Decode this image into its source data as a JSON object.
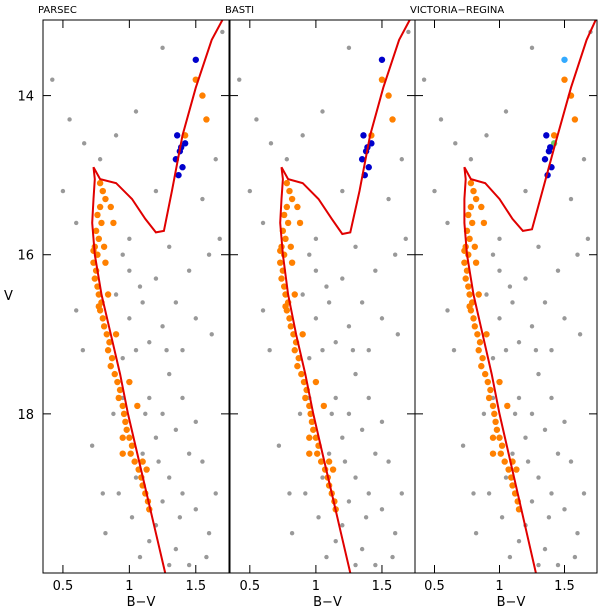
{
  "chart_data": {
    "type": "scatter",
    "ylabel": "V",
    "xlabel": "B−V",
    "xlim": [
      0.35,
      1.75
    ],
    "ylim": [
      20.0,
      13.05
    ],
    "x_ticks": [
      "0.5",
      "1",
      "1.5"
    ],
    "x_tick_values": [
      0.5,
      1.0,
      1.5
    ],
    "y_ticks": [
      "14",
      "16",
      "18"
    ],
    "y_tick_values": [
      14,
      16,
      18
    ],
    "colors": {
      "field": "#999999",
      "member": "#ff8000",
      "giant_blue": "#0000cc",
      "giant_lightblue": "#33aaff",
      "giant_green": "#66cc66",
      "isochrone": "#e00000"
    },
    "panels": [
      {
        "title": "PARSEC",
        "model": "parsec"
      },
      {
        "title": "BASTI",
        "model": "basti"
      },
      {
        "title": "VICTORIA−REGINA",
        "model": "victoria"
      }
    ],
    "isochrones": {
      "parsec": [
        [
          1.27,
          20.0
        ],
        [
          1.2,
          19.5
        ],
        [
          1.13,
          19.0
        ],
        [
          1.06,
          18.5
        ],
        [
          0.99,
          18.0
        ],
        [
          0.93,
          17.5
        ],
        [
          0.86,
          17.0
        ],
        [
          0.79,
          16.5
        ],
        [
          0.74,
          16.0
        ],
        [
          0.72,
          15.6
        ],
        [
          0.73,
          15.3
        ],
        [
          0.74,
          15.05
        ],
        [
          0.73,
          14.9
        ],
        [
          0.78,
          15.05
        ],
        [
          0.9,
          15.1
        ],
        [
          1.02,
          15.3
        ],
        [
          1.12,
          15.55
        ],
        [
          1.2,
          15.72
        ],
        [
          1.26,
          15.7
        ],
        [
          1.32,
          15.2
        ],
        [
          1.4,
          14.5
        ],
        [
          1.5,
          13.9
        ],
        [
          1.62,
          13.3
        ],
        [
          1.7,
          13.05
        ]
      ],
      "basti": [
        [
          1.26,
          20.0
        ],
        [
          1.19,
          19.5
        ],
        [
          1.12,
          19.0
        ],
        [
          1.05,
          18.5
        ],
        [
          0.98,
          18.0
        ],
        [
          0.92,
          17.5
        ],
        [
          0.85,
          17.0
        ],
        [
          0.79,
          16.5
        ],
        [
          0.75,
          16.0
        ],
        [
          0.73,
          15.6
        ],
        [
          0.74,
          15.3
        ],
        [
          0.75,
          15.05
        ],
        [
          0.74,
          14.9
        ],
        [
          0.79,
          15.05
        ],
        [
          0.9,
          15.1
        ],
        [
          1.02,
          15.3
        ],
        [
          1.12,
          15.55
        ],
        [
          1.2,
          15.74
        ],
        [
          1.26,
          15.72
        ],
        [
          1.33,
          15.2
        ],
        [
          1.41,
          14.5
        ],
        [
          1.51,
          13.9
        ],
        [
          1.63,
          13.3
        ],
        [
          1.71,
          13.05
        ]
      ],
      "victoria": [
        [
          1.28,
          20.0
        ],
        [
          1.21,
          19.5
        ],
        [
          1.14,
          19.0
        ],
        [
          1.07,
          18.5
        ],
        [
          1.0,
          18.0
        ],
        [
          0.94,
          17.5
        ],
        [
          0.87,
          17.0
        ],
        [
          0.8,
          16.5
        ],
        [
          0.75,
          16.0
        ],
        [
          0.73,
          15.6
        ],
        [
          0.73,
          15.3
        ],
        [
          0.74,
          15.05
        ],
        [
          0.73,
          14.9
        ],
        [
          0.78,
          15.05
        ],
        [
          0.89,
          15.1
        ],
        [
          1.0,
          15.3
        ],
        [
          1.1,
          15.55
        ],
        [
          1.18,
          15.7
        ],
        [
          1.25,
          15.68
        ],
        [
          1.33,
          15.2
        ],
        [
          1.43,
          14.6
        ],
        [
          1.55,
          13.9
        ],
        [
          1.67,
          13.3
        ],
        [
          1.74,
          13.05
        ]
      ]
    },
    "members": [
      [
        0.78,
        15.1
      ],
      [
        0.8,
        15.2
      ],
      [
        0.82,
        15.3
      ],
      [
        0.78,
        15.4
      ],
      [
        0.76,
        15.5
      ],
      [
        0.79,
        15.6
      ],
      [
        0.75,
        15.7
      ],
      [
        0.77,
        15.8
      ],
      [
        0.74,
        15.9
      ],
      [
        0.76,
        16.0
      ],
      [
        0.73,
        16.1
      ],
      [
        0.75,
        16.2
      ],
      [
        0.74,
        16.3
      ],
      [
        0.76,
        16.4
      ],
      [
        0.77,
        16.5
      ],
      [
        0.79,
        16.6
      ],
      [
        0.78,
        16.7
      ],
      [
        0.8,
        16.8
      ],
      [
        0.81,
        16.9
      ],
      [
        0.83,
        17.0
      ],
      [
        0.85,
        17.1
      ],
      [
        0.84,
        17.2
      ],
      [
        0.87,
        17.3
      ],
      [
        0.86,
        17.4
      ],
      [
        0.89,
        17.5
      ],
      [
        0.91,
        17.6
      ],
      [
        0.93,
        17.7
      ],
      [
        0.92,
        17.8
      ],
      [
        0.95,
        17.9
      ],
      [
        0.96,
        18.0
      ],
      [
        0.97,
        18.1
      ],
      [
        0.98,
        18.2
      ],
      [
        1.0,
        18.3
      ],
      [
        1.02,
        18.4
      ],
      [
        1.01,
        18.5
      ],
      [
        1.04,
        18.6
      ],
      [
        1.07,
        18.7
      ],
      [
        1.09,
        18.8
      ],
      [
        1.1,
        18.9
      ],
      [
        1.12,
        19.0
      ],
      [
        1.14,
        19.1
      ],
      [
        1.15,
        19.2
      ],
      [
        0.86,
        15.4
      ],
      [
        0.81,
        15.9
      ],
      [
        0.84,
        16.5
      ],
      [
        0.82,
        16.1
      ],
      [
        0.9,
        17.0
      ],
      [
        0.95,
        18.5
      ],
      [
        1.1,
        18.6
      ],
      [
        1.0,
        17.6
      ],
      [
        1.06,
        17.9
      ],
      [
        0.88,
        15.6
      ],
      [
        0.73,
        15.95
      ],
      [
        0.77,
        16.65
      ],
      [
        0.95,
        18.3
      ],
      [
        1.13,
        18.7
      ],
      [
        1.5,
        13.8
      ],
      [
        1.55,
        14.0
      ],
      [
        1.58,
        14.3
      ],
      [
        1.42,
        14.5
      ]
    ],
    "giants": [
      [
        1.36,
        14.5
      ],
      [
        1.38,
        14.7
      ],
      [
        1.35,
        14.8
      ],
      [
        1.4,
        14.9
      ],
      [
        1.37,
        15.0
      ],
      [
        1.42,
        14.6
      ],
      [
        1.39,
        14.65
      ],
      [
        1.5,
        13.55
      ]
    ],
    "field": [
      [
        0.42,
        13.8
      ],
      [
        0.55,
        14.3
      ],
      [
        0.66,
        14.6
      ],
      [
        0.78,
        14.8
      ],
      [
        1.05,
        14.2
      ],
      [
        0.9,
        14.5
      ],
      [
        1.25,
        13.4
      ],
      [
        0.5,
        15.2
      ],
      [
        0.6,
        15.6
      ],
      [
        1.7,
        13.2
      ],
      [
        1.65,
        14.8
      ],
      [
        1.55,
        15.3
      ],
      [
        1.45,
        16.2
      ],
      [
        1.35,
        16.6
      ],
      [
        1.25,
        16.9
      ],
      [
        1.15,
        17.1
      ],
      [
        1.05,
        17.2
      ],
      [
        0.95,
        17.3
      ],
      [
        1.3,
        17.5
      ],
      [
        1.4,
        17.8
      ],
      [
        1.5,
        18.1
      ],
      [
        1.2,
        18.3
      ],
      [
        1.1,
        18.5
      ],
      [
        1.3,
        18.8
      ],
      [
        1.4,
        19.0
      ],
      [
        1.5,
        19.2
      ],
      [
        1.6,
        19.5
      ],
      [
        1.2,
        19.4
      ],
      [
        1.35,
        19.7
      ],
      [
        1.45,
        19.9
      ],
      [
        1.0,
        16.2
      ],
      [
        0.9,
        16.5
      ],
      [
        1.1,
        16.6
      ],
      [
        1.2,
        16.3
      ],
      [
        1.0,
        16.8
      ],
      [
        1.15,
        17.8
      ],
      [
        1.25,
        18.0
      ],
      [
        1.35,
        18.2
      ],
      [
        1.05,
        18.8
      ],
      [
        1.25,
        19.1
      ],
      [
        1.15,
        19.6
      ],
      [
        1.3,
        19.9
      ],
      [
        1.55,
        18.6
      ],
      [
        1.62,
        17.0
      ],
      [
        0.95,
        17.8
      ],
      [
        0.88,
        18.0
      ],
      [
        0.92,
        19.0
      ],
      [
        1.02,
        19.3
      ],
      [
        1.08,
        19.8
      ],
      [
        1.5,
        16.8
      ],
      [
        1.6,
        16.0
      ],
      [
        1.68,
        15.8
      ],
      [
        0.65,
        17.2
      ],
      [
        0.6,
        16.7
      ],
      [
        0.72,
        18.4
      ],
      [
        0.8,
        19.0
      ],
      [
        0.82,
        19.5
      ],
      [
        1.2,
        15.2
      ],
      [
        1.3,
        15.9
      ],
      [
        1.0,
        15.8
      ],
      [
        0.95,
        16.0
      ],
      [
        1.4,
        17.2
      ],
      [
        1.45,
        18.5
      ],
      [
        1.65,
        19.0
      ],
      [
        1.58,
        19.8
      ],
      [
        1.38,
        19.3
      ],
      [
        1.22,
        18.6
      ],
      [
        1.12,
        18.0
      ],
      [
        1.28,
        17.2
      ],
      [
        1.08,
        16.4
      ]
    ]
  }
}
